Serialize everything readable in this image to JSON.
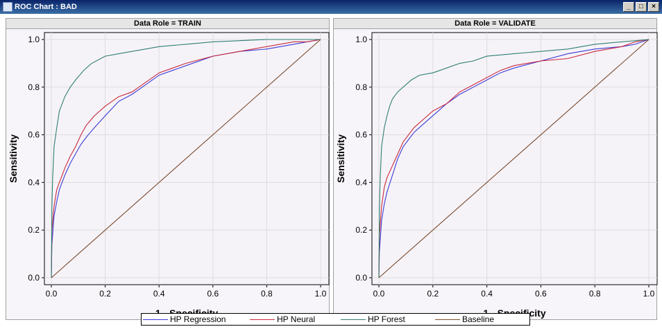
{
  "window": {
    "title": "ROC Chart : BAD",
    "minimize_label": "_",
    "maximize_label": "□",
    "close_label": "×"
  },
  "colors": {
    "HP Regression": "#3b3bd6",
    "HP Neural": "#c8283c",
    "HP Forest": "#2e7e72",
    "Baseline": "#7a4a2a"
  },
  "chart_data": [
    {
      "type": "line",
      "title": "Data Role = TRAIN",
      "xlabel": "1 - Specificity",
      "ylabel": "Sensitivity",
      "xlim": [
        0,
        1
      ],
      "ylim": [
        0,
        1
      ],
      "xticks": [
        "0.0",
        "0.2",
        "0.4",
        "0.6",
        "0.8",
        "1.0"
      ],
      "yticks": [
        "0.0",
        "0.2",
        "0.4",
        "0.6",
        "0.8",
        "1.0"
      ],
      "grid": true,
      "series": [
        {
          "name": "HP Regression",
          "x": [
            0,
            0.002,
            0.01,
            0.02,
            0.03,
            0.05,
            0.07,
            0.09,
            0.11,
            0.13,
            0.16,
            0.2,
            0.25,
            0.3,
            0.35,
            0.4,
            0.45,
            0.5,
            0.6,
            0.7,
            0.8,
            0.9,
            0.95,
            1.0
          ],
          "y": [
            0,
            0.14,
            0.26,
            0.32,
            0.37,
            0.43,
            0.48,
            0.52,
            0.56,
            0.59,
            0.63,
            0.68,
            0.74,
            0.77,
            0.81,
            0.85,
            0.87,
            0.89,
            0.93,
            0.95,
            0.96,
            0.98,
            0.99,
            1.0
          ]
        },
        {
          "name": "HP Neural",
          "x": [
            0,
            0.002,
            0.01,
            0.02,
            0.03,
            0.05,
            0.07,
            0.09,
            0.11,
            0.13,
            0.16,
            0.2,
            0.25,
            0.3,
            0.35,
            0.4,
            0.45,
            0.5,
            0.6,
            0.7,
            0.8,
            0.9,
            0.95,
            1.0
          ],
          "y": [
            0,
            0.2,
            0.3,
            0.37,
            0.4,
            0.46,
            0.51,
            0.55,
            0.6,
            0.64,
            0.68,
            0.72,
            0.76,
            0.78,
            0.82,
            0.86,
            0.88,
            0.9,
            0.93,
            0.95,
            0.97,
            0.99,
            0.99,
            1.0
          ]
        },
        {
          "name": "HP Forest",
          "x": [
            0,
            0.002,
            0.005,
            0.01,
            0.02,
            0.03,
            0.04,
            0.05,
            0.07,
            0.09,
            0.12,
            0.15,
            0.2,
            0.25,
            0.3,
            0.35,
            0.4,
            0.5,
            0.6,
            0.7,
            0.8,
            0.9,
            1.0
          ],
          "y": [
            0,
            0.3,
            0.42,
            0.55,
            0.63,
            0.7,
            0.73,
            0.76,
            0.8,
            0.83,
            0.87,
            0.9,
            0.93,
            0.94,
            0.95,
            0.96,
            0.97,
            0.98,
            0.99,
            0.995,
            1.0,
            1.0,
            1.0
          ]
        },
        {
          "name": "Baseline",
          "x": [
            0,
            1
          ],
          "y": [
            0,
            1
          ]
        }
      ]
    },
    {
      "type": "line",
      "title": "Data Role = VALIDATE",
      "xlabel": "1 - Specificity",
      "ylabel": "Sensitivity",
      "xlim": [
        0,
        1
      ],
      "ylim": [
        0,
        1
      ],
      "xticks": [
        "0.0",
        "0.2",
        "0.4",
        "0.6",
        "0.8",
        "1.0"
      ],
      "yticks": [
        "0.0",
        "0.2",
        "0.4",
        "0.6",
        "0.8",
        "1.0"
      ],
      "grid": true,
      "series": [
        {
          "name": "HP Regression",
          "x": [
            0,
            0.002,
            0.01,
            0.02,
            0.03,
            0.05,
            0.07,
            0.09,
            0.11,
            0.13,
            0.16,
            0.2,
            0.25,
            0.3,
            0.35,
            0.4,
            0.45,
            0.5,
            0.6,
            0.7,
            0.8,
            0.9,
            0.95,
            1.0
          ],
          "y": [
            0,
            0.11,
            0.24,
            0.31,
            0.36,
            0.43,
            0.5,
            0.55,
            0.58,
            0.61,
            0.64,
            0.68,
            0.73,
            0.77,
            0.8,
            0.83,
            0.86,
            0.88,
            0.91,
            0.94,
            0.96,
            0.97,
            0.98,
            1.0
          ]
        },
        {
          "name": "HP Neural",
          "x": [
            0,
            0.002,
            0.01,
            0.02,
            0.03,
            0.05,
            0.07,
            0.09,
            0.11,
            0.13,
            0.16,
            0.2,
            0.25,
            0.3,
            0.35,
            0.4,
            0.45,
            0.5,
            0.6,
            0.7,
            0.8,
            0.9,
            0.95,
            1.0
          ],
          "y": [
            0,
            0.18,
            0.3,
            0.38,
            0.42,
            0.47,
            0.52,
            0.57,
            0.6,
            0.63,
            0.66,
            0.7,
            0.73,
            0.78,
            0.81,
            0.84,
            0.87,
            0.89,
            0.91,
            0.92,
            0.95,
            0.97,
            0.99,
            1.0
          ]
        },
        {
          "name": "HP Forest",
          "x": [
            0,
            0.002,
            0.005,
            0.01,
            0.02,
            0.03,
            0.04,
            0.05,
            0.07,
            0.09,
            0.12,
            0.15,
            0.2,
            0.25,
            0.3,
            0.35,
            0.4,
            0.5,
            0.6,
            0.7,
            0.8,
            0.9,
            1.0
          ],
          "y": [
            0,
            0.29,
            0.42,
            0.55,
            0.63,
            0.68,
            0.72,
            0.75,
            0.78,
            0.8,
            0.83,
            0.85,
            0.86,
            0.88,
            0.9,
            0.91,
            0.93,
            0.94,
            0.95,
            0.96,
            0.98,
            0.99,
            1.0
          ]
        },
        {
          "name": "Baseline",
          "x": [
            0,
            1
          ],
          "y": [
            0,
            1
          ]
        }
      ]
    }
  ],
  "legend": [
    "HP Regression",
    "HP Neural",
    "HP Forest",
    "Baseline"
  ]
}
